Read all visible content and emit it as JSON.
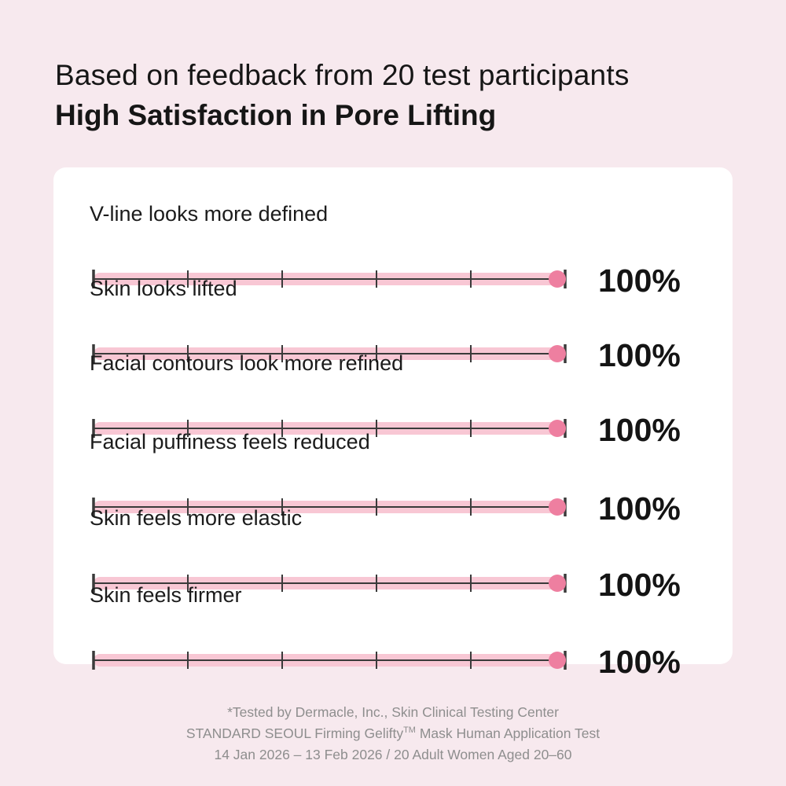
{
  "header": {
    "subtitle": "Based on feedback from 20 test participants",
    "title": "High Satisfaction in Pore Lifting"
  },
  "colors": {
    "background": "#f7e9ee",
    "card": "#ffffff",
    "bar_fill": "#f8c7d4",
    "bar_marker": "#ee7fa0",
    "axis": "#3a3a3a"
  },
  "chart_data": {
    "type": "bar",
    "orientation": "horizontal",
    "categories": [
      "V-line looks more defined",
      "Skin looks lifted",
      "Facial contours look more refined",
      "Facial puffiness feels reduced",
      "Skin feels more elastic",
      "Skin feels firmer"
    ],
    "values": [
      100,
      100,
      100,
      100,
      100,
      100
    ],
    "value_labels": [
      "100%",
      "100%",
      "100%",
      "100%",
      "100%",
      "100%"
    ],
    "xlim": [
      0,
      100
    ],
    "ticks": [
      0,
      20,
      40,
      60,
      80,
      100
    ],
    "unit": "%"
  },
  "footnote": {
    "line1": "*Tested by Dermacle, Inc., Skin Clinical Testing Center",
    "line2_pre": "STANDARD SEOUL Firming Gelifty",
    "line2_tm": "TM",
    "line2_post": " Mask Human Application Test",
    "line3": "14 Jan 2026 – 13 Feb 2026 / 20 Adult Women Aged 20–60"
  }
}
